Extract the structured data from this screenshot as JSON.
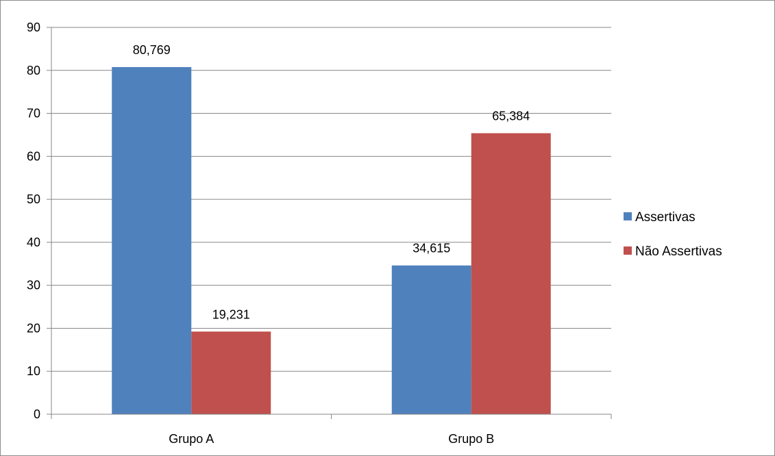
{
  "chart_data": {
    "type": "bar",
    "title": "",
    "xlabel": "",
    "ylabel": "",
    "categories": [
      "Grupo A",
      "Grupo B"
    ],
    "series": [
      {
        "name": "Assertivas",
        "values": [
          80.769,
          34.615
        ],
        "labels": [
          "80,769",
          "34,615"
        ],
        "color": "#4f81bd"
      },
      {
        "name": "Não Assertivas",
        "values": [
          19.231,
          65.384
        ],
        "labels": [
          "19,231",
          "65,384"
        ],
        "color": "#c0504d"
      }
    ],
    "ylim": [
      0,
      90
    ],
    "yticks": [
      0,
      10,
      20,
      30,
      40,
      50,
      60,
      70,
      80,
      90
    ],
    "grid": true,
    "legend_position": "right"
  }
}
